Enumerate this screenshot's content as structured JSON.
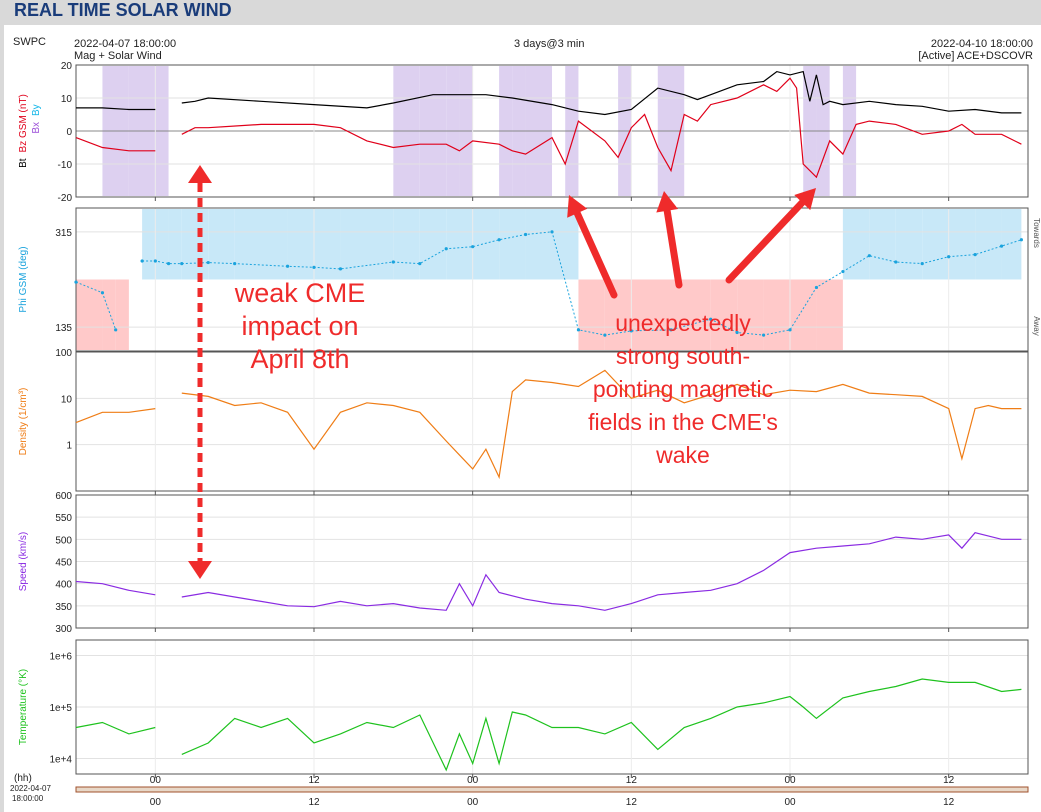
{
  "page_title": "REAL TIME SOLAR WIND",
  "header": {
    "org": "SWPC",
    "start": "2022-04-07 18:00:00",
    "subtitle": "Mag + Solar Wind",
    "span": "3 days@3 min",
    "end": "2022-04-10 18:00:00",
    "source": "[Active] ACE+DSCOVR"
  },
  "annotations": {
    "left_text": [
      "weak CME",
      "impact on",
      "April 8th"
    ],
    "right_text": [
      "unexpectedly",
      "strong south-",
      "pointing magnetic",
      "fields in the CME's",
      "wake"
    ],
    "color": "#ef2b2b"
  },
  "colors": {
    "bt": "#000000",
    "bz": "#e0001a",
    "bx": "#9c4fd8",
    "by": "#18b7e8",
    "phi": "#1aa3dd",
    "phi_toward": "#c8e8f8",
    "phi_away": "#ffc9c9",
    "bz_south": "#ddd0f0",
    "density": "#ef7d16",
    "speed": "#8a2be2",
    "temperature": "#1ec21e"
  },
  "chart_data": {
    "type": "line",
    "x_unit": "hours since 2022-04-07 18:00:00",
    "x_range": [
      0,
      72
    ],
    "tick_labels": [
      "00",
      "12",
      "00",
      "12",
      "00",
      "12"
    ],
    "tick_hours": [
      6,
      18,
      30,
      42,
      54,
      66
    ],
    "bottom_left_date": [
      "2022-04-07",
      "18:00:00"
    ],
    "hh_label": "(hh)",
    "panels": [
      {
        "name": "mag",
        "ylabel_parts": [
          "Bt",
          "Bz GSM (nT)",
          "Bx",
          "By"
        ],
        "yticks": [
          "20",
          "10",
          "0",
          "-10",
          "-20"
        ],
        "ylim": [
          -20,
          20
        ],
        "series": [
          {
            "name": "Bt",
            "x": [
              0,
              2,
              4,
              6,
              7,
              8,
              9,
              10,
              14,
              18,
              22,
              24,
              27,
              29,
              31,
              33,
              36,
              38,
              40,
              42,
              44,
              46,
              47,
              48,
              50,
              52,
              53,
              54,
              55,
              55.5,
              56,
              56.5,
              57,
              58,
              60,
              62,
              64,
              66,
              68,
              70,
              71.5
            ],
            "values": [
              7,
              7,
              6.5,
              6.5,
              null,
              8.5,
              9,
              10,
              9,
              8,
              7,
              8.5,
              11,
              11,
              11,
              10,
              8,
              6,
              5,
              6.5,
              13,
              11,
              9.5,
              11,
              14,
              15,
              18,
              17,
              18,
              9,
              17,
              8,
              9,
              8,
              9,
              8,
              7.5,
              6,
              6.5,
              5.5,
              5.5
            ]
          },
          {
            "name": "Bz",
            "x": [
              0,
              2,
              4,
              6,
              7,
              8,
              9,
              10,
              14,
              18,
              20,
              22,
              24,
              26,
              28,
              29,
              30,
              32,
              33,
              34,
              36,
              37,
              38,
              40,
              41,
              42,
              43,
              44,
              45,
              46,
              47,
              48,
              50,
              52,
              53,
              54,
              54.5,
              55,
              56,
              57,
              58,
              59,
              60,
              62,
              64,
              66,
              67,
              68,
              70,
              71.5
            ],
            "values": [
              -2,
              -5,
              -6,
              -6,
              null,
              -1,
              1,
              1,
              2,
              2,
              1,
              -3,
              -5,
              -4,
              -4,
              -6,
              -3,
              -4,
              -6,
              -7,
              -2,
              -10,
              3,
              -3,
              -8,
              1,
              5,
              -5,
              -12,
              5,
              3,
              8,
              10,
              14,
              12,
              16,
              13,
              -10,
              -14,
              -3,
              -7,
              2,
              3,
              2,
              -1,
              0,
              2,
              -1,
              -1,
              -4
            ]
          },
          {
            "name": "Bx",
            "x": [
              0,
              72
            ],
            "values": [
              null,
              null
            ]
          },
          {
            "name": "By",
            "x": [
              0,
              72
            ],
            "values": [
              null,
              null
            ]
          }
        ]
      },
      {
        "name": "phi",
        "ylabel": "Phi GSM (deg)",
        "yticks": [
          "315",
          "135"
        ],
        "ylim": [
          90,
          360
        ],
        "right_labels": [
          "Towards",
          "Away"
        ],
        "series": [
          {
            "name": "Phi",
            "x": [
              0,
              2,
              3,
              4,
              5,
              6,
              7,
              8,
              10,
              12,
              16,
              18,
              20,
              24,
              26,
              28,
              30,
              32,
              34,
              36,
              38,
              40,
              42,
              45,
              48,
              50,
              52,
              54,
              56,
              58,
              60,
              62,
              64,
              66,
              68,
              70,
              71.5
            ],
            "values": [
              220,
              200,
              130,
              null,
              260,
              260,
              255,
              255,
              257,
              255,
              250,
              248,
              245,
              258,
              255,
              283,
              287,
              300,
              310,
              315,
              130,
              120,
              128,
              130,
              150,
              125,
              120,
              130,
              210,
              240,
              270,
              258,
              255,
              268,
              272,
              288,
              300
            ]
          }
        ]
      },
      {
        "name": "density",
        "ylabel": "Density (1/cm³)",
        "yticks": [
          "100",
          "10",
          "1"
        ],
        "ylim": [
          0.1,
          100
        ],
        "log": true,
        "series": [
          {
            "name": "Density",
            "x": [
              0,
              2,
              4,
              6,
              7,
              8,
              10,
              12,
              14,
              16,
              18,
              20,
              22,
              24,
              26,
              28,
              29,
              30,
              31,
              32,
              33,
              34,
              36,
              38,
              40,
              42,
              44,
              46,
              48,
              50,
              52,
              54,
              56,
              58,
              60,
              62,
              64,
              66,
              67,
              68,
              69,
              70,
              71.5
            ],
            "values": [
              3,
              5,
              5,
              6,
              null,
              13,
              11,
              7,
              8,
              5,
              0.8,
              5,
              8,
              7,
              5,
              1.2,
              0.6,
              0.3,
              0.8,
              0.2,
              14,
              25,
              22,
              18,
              40,
              10,
              15,
              8,
              12,
              20,
              12,
              15,
              14,
              20,
              13,
              12,
              11,
              6,
              0.5,
              6,
              7,
              6,
              6
            ]
          }
        ]
      },
      {
        "name": "speed",
        "ylabel": "Speed (km/s)",
        "yticks": [
          "600",
          "550",
          "500",
          "450",
          "400",
          "350",
          "300"
        ],
        "ylim": [
          300,
          600
        ],
        "series": [
          {
            "name": "Speed",
            "x": [
              0,
              2,
              4,
              6,
              7,
              8,
              10,
              12,
              14,
              16,
              18,
              20,
              22,
              24,
              26,
              28,
              29,
              30,
              31,
              32,
              34,
              36,
              38,
              40,
              42,
              44,
              46,
              48,
              50,
              52,
              54,
              56,
              58,
              60,
              62,
              64,
              66,
              67,
              68,
              70,
              71.5
            ],
            "values": [
              405,
              400,
              385,
              375,
              null,
              370,
              380,
              370,
              360,
              350,
              348,
              360,
              350,
              355,
              345,
              340,
              400,
              350,
              420,
              380,
              365,
              355,
              350,
              340,
              355,
              375,
              380,
              385,
              400,
              430,
              470,
              480,
              485,
              490,
              505,
              500,
              510,
              480,
              515,
              500,
              500
            ]
          }
        ]
      },
      {
        "name": "temperature",
        "ylabel": "Temperature (°K)",
        "yticks": [
          "1e+6",
          "1e+5",
          "1e+4"
        ],
        "ylim": [
          5000,
          2000000
        ],
        "log": true,
        "series": [
          {
            "name": "Temperature",
            "x": [
              0,
              2,
              4,
              6,
              7,
              8,
              10,
              12,
              14,
              16,
              18,
              20,
              22,
              24,
              26,
              28,
              29,
              30,
              31,
              32,
              33,
              34,
              36,
              38,
              40,
              42,
              44,
              46,
              48,
              50,
              52,
              54,
              55,
              56,
              58,
              60,
              62,
              64,
              66,
              68,
              70,
              71.5
            ],
            "values": [
              40000,
              50000,
              30000,
              40000,
              null,
              12000,
              20000,
              60000,
              40000,
              60000,
              20000,
              30000,
              50000,
              40000,
              70000,
              6000,
              30000,
              8000,
              60000,
              8000,
              80000,
              70000,
              40000,
              40000,
              30000,
              50000,
              15000,
              40000,
              60000,
              100000,
              120000,
              160000,
              100000,
              60000,
              150000,
              200000,
              250000,
              350000,
              300000,
              300000,
              200000,
              220000
            ]
          }
        ]
      }
    ]
  }
}
